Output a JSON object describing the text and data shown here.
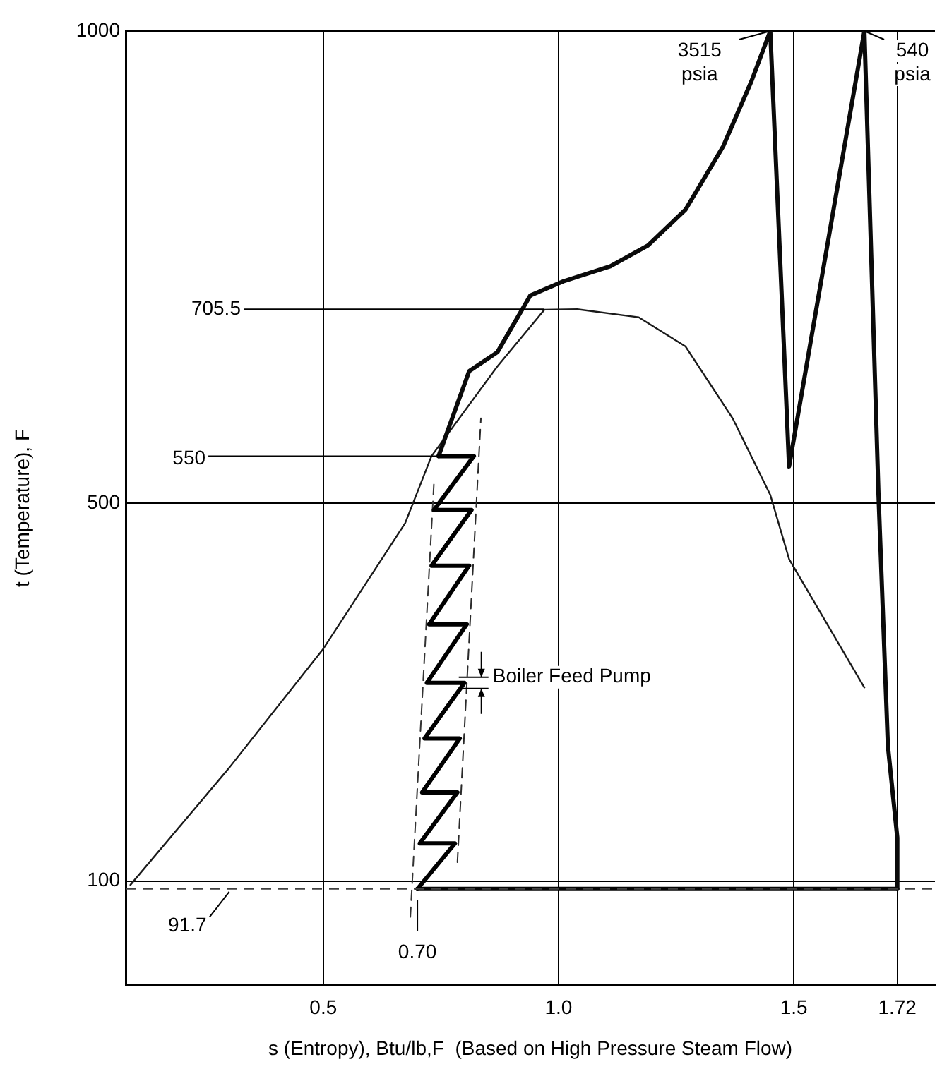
{
  "chart_data": {
    "type": "line",
    "xlabel": "s (Entropy), Btu/lb,F  (Based on High Pressure Steam Flow)",
    "ylabel": "t (Temperature), F",
    "xlim": [
      0.08,
      1.8
    ],
    "ylim": [
      -10,
      1000
    ],
    "xticks": [
      0.5,
      {
        "value": 1.0,
        "label": "1.0"
      },
      1.5,
      1.72
    ],
    "yticks": [
      100,
      500,
      1000
    ],
    "grid": true,
    "legend": false,
    "marker": "none",
    "series": [
      {
        "color": "#000000",
        "x": [
          0.7,
          0.78,
          0.705,
          0.785,
          0.71,
          0.79,
          0.715,
          0.8,
          0.72,
          0.805,
          0.725,
          0.81,
          0.73,
          0.815,
          0.735,
          0.82,
          0.745
        ],
        "values": [
          91.7,
          140,
          140,
          194,
          194,
          251,
          251,
          310,
          310,
          372,
          372,
          434,
          434,
          493,
          493,
          550,
          550
        ]
      },
      {
        "color": "#0a0a0a",
        "x": [
          0.745,
          0.81,
          0.87,
          0.94,
          1.01,
          1.11,
          1.19,
          1.27,
          1.35,
          1.41,
          1.45,
          1.49,
          1.65,
          1.68,
          1.7,
          1.72,
          1.72
        ],
        "values": [
          550,
          640,
          660,
          720,
          735,
          751,
          773,
          811,
          878,
          947,
          1000,
          539,
          1000,
          509,
          243,
          146,
          91.7
        ]
      },
      {
        "color": "#050505",
        "x": [
          0.7,
          1.72
        ],
        "values": [
          91.7,
          91.7
        ]
      },
      {
        "color": "#1a1a1a",
        "x": [
          0.09,
          0.3,
          0.5,
          0.674,
          0.73,
          0.87,
          0.97,
          1.04,
          1.17,
          1.27,
          1.37,
          1.45,
          1.49,
          1.65
        ],
        "values": [
          96,
          220,
          346,
          479,
          550,
          645,
          705,
          705.5,
          697,
          666,
          590,
          509,
          441,
          305
        ]
      },
      {
        "color": "#333333",
        "line_style": "dashed",
        "x": [
          0.685,
          0.735
        ],
        "values": [
          62,
          520
        ]
      },
      {
        "color": "#2a2a2a",
        "line_style": "dashed",
        "x": [
          0.785,
          0.835
        ],
        "values": [
          120,
          590
        ]
      }
    ],
    "ref_lines": [
      {
        "axis": "y",
        "value": 91.7,
        "line_style": "dashed",
        "color": "#404040"
      }
    ],
    "annotations": [
      {
        "text": "3515 psia",
        "x": 1.45,
        "y": 1000
      },
      {
        "text": "540 psia",
        "x": 1.65,
        "y": 1000
      },
      {
        "text": "705.5",
        "x": 0.97,
        "y": 705.5
      },
      {
        "text": "550",
        "x": 0.745,
        "y": 550
      },
      {
        "text": "0.70",
        "x": 0.7,
        "y": 91.7
      },
      {
        "text": "Boiler Feed Pump",
        "x": 0.8,
        "y": 310
      },
      {
        "text": "91.7",
        "x": 0.3,
        "y": 91.7
      }
    ]
  }
}
